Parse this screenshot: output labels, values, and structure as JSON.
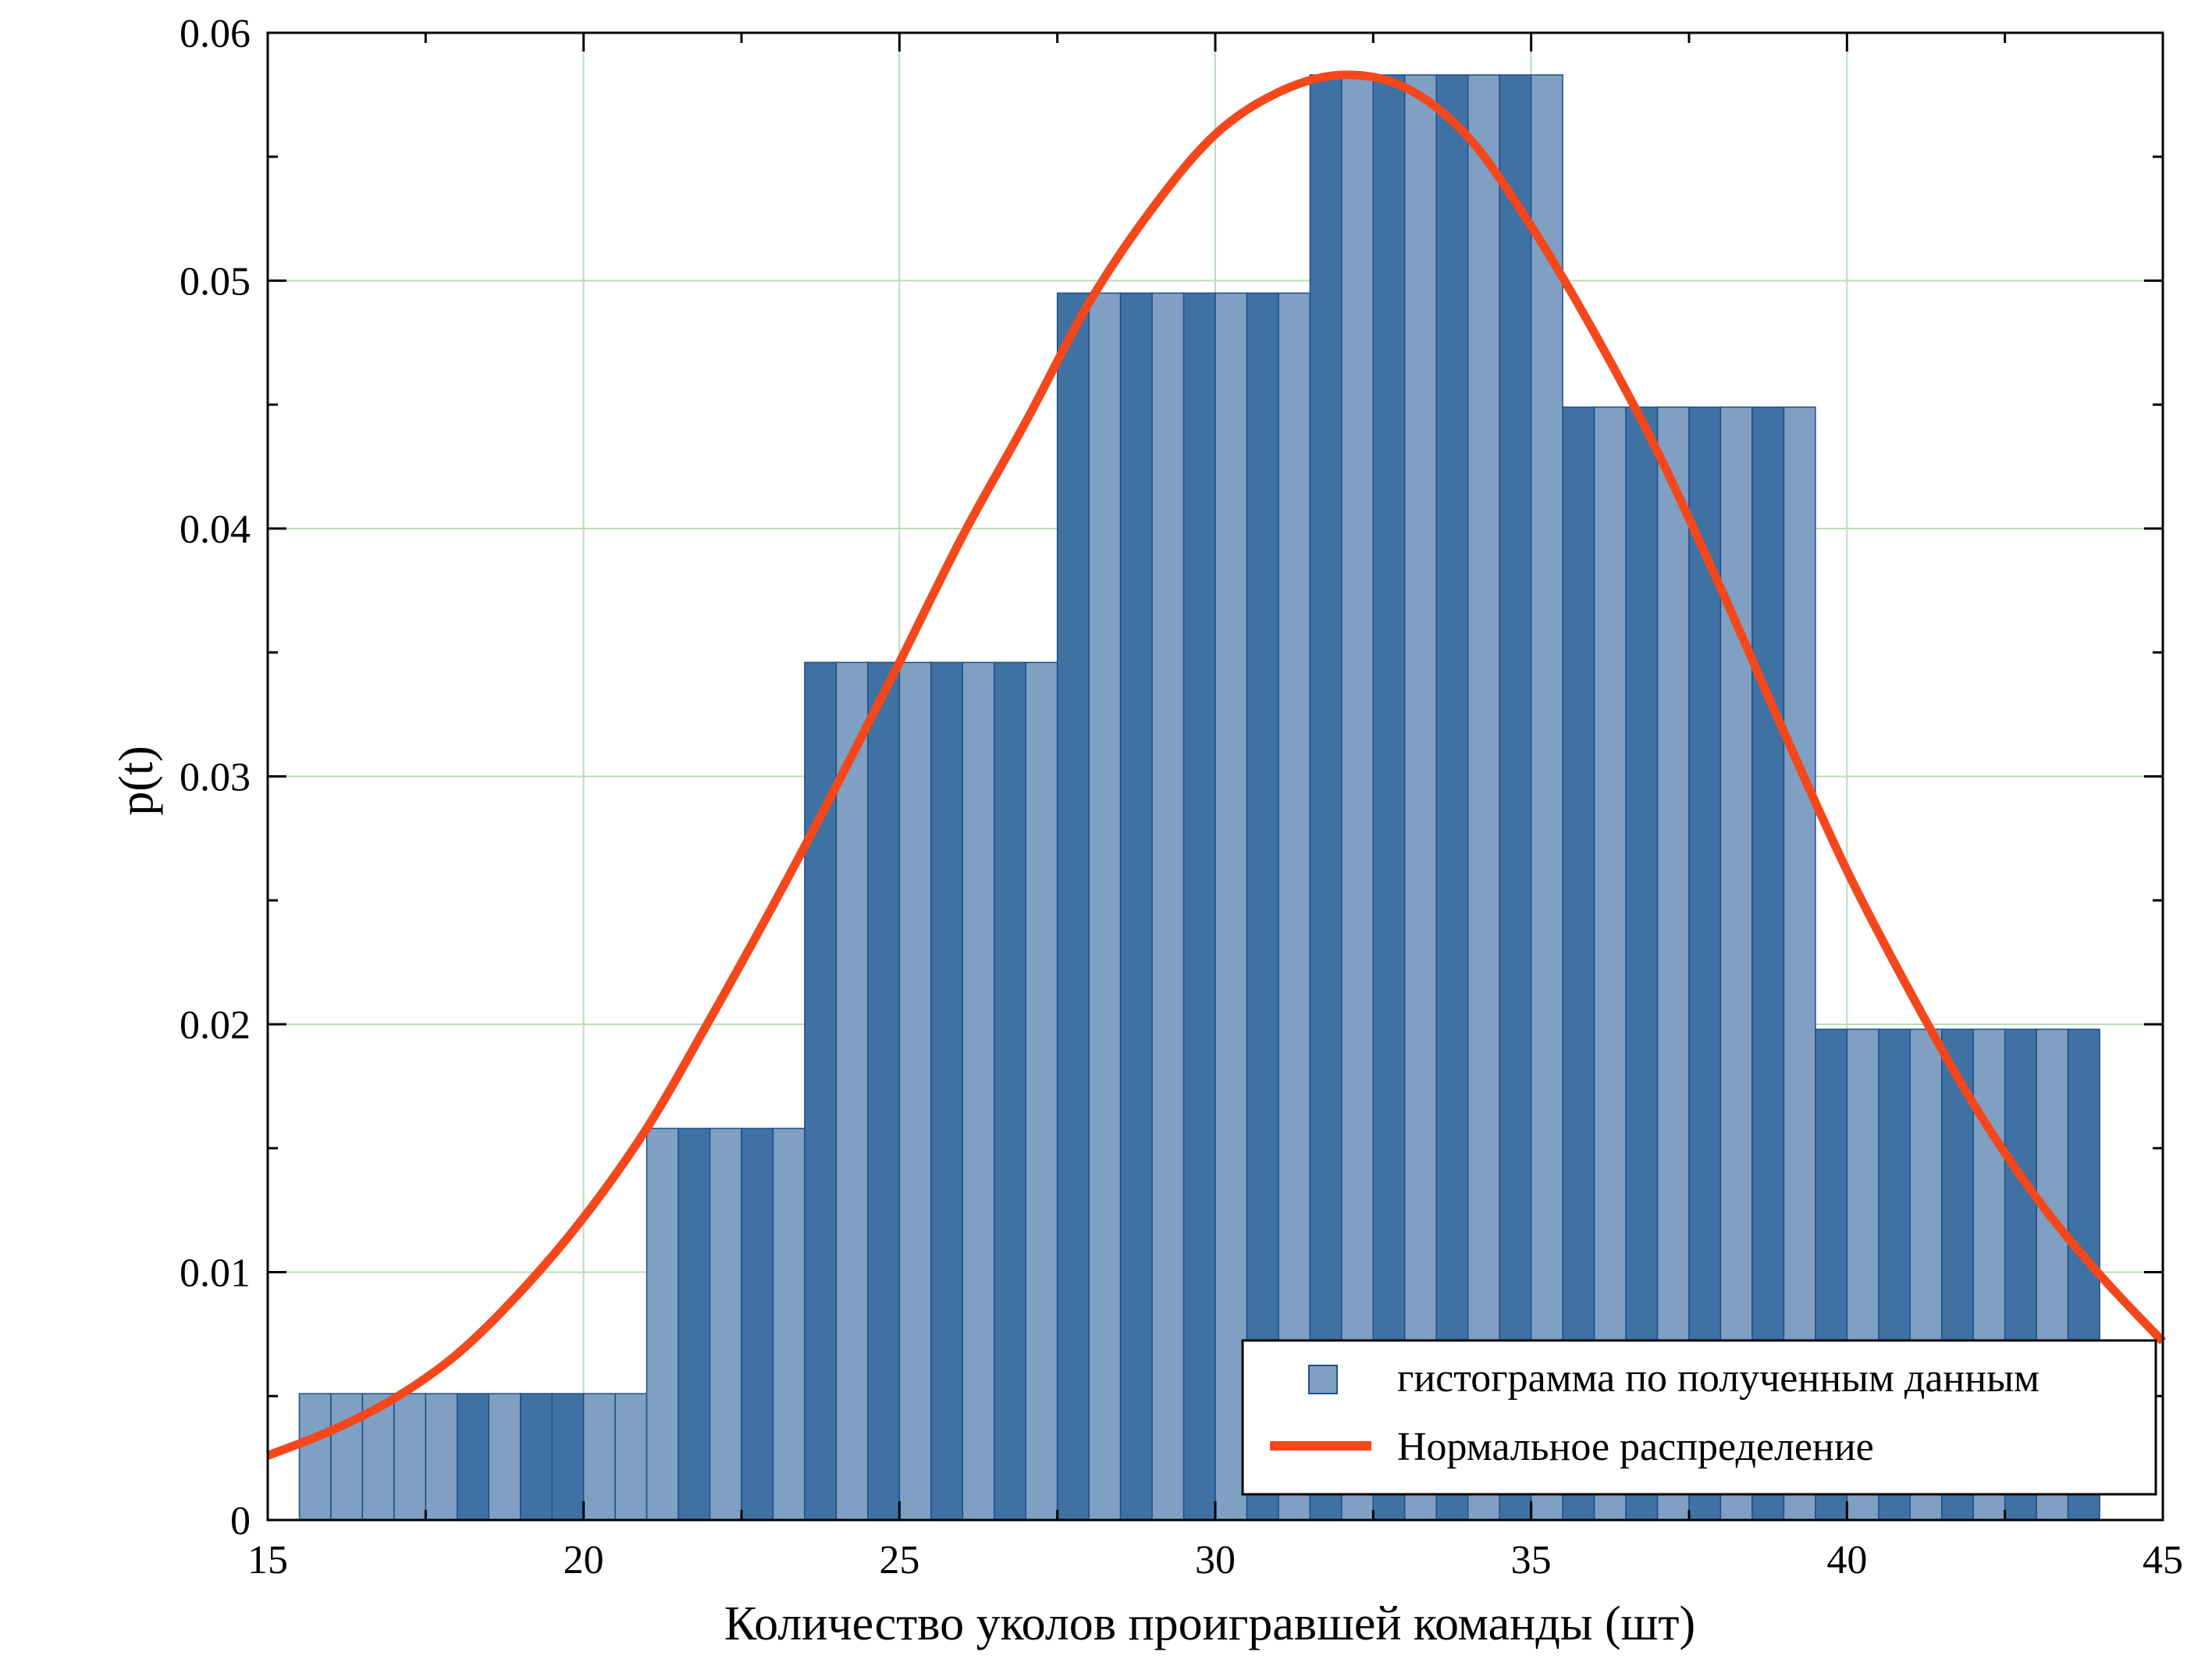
{
  "chart_data": {
    "type": "bar",
    "title": "",
    "xlabel": "Количество уколов проигравшей команды (шт)",
    "ylabel": "p(t)",
    "xlim": [
      15,
      45
    ],
    "ylim": [
      0,
      0.06
    ],
    "xticks": [
      "15",
      "20",
      "25",
      "30",
      "35",
      "40",
      "45"
    ],
    "yticks": [
      "0",
      "0.01",
      "0.02",
      "0.03",
      "0.04",
      "0.05",
      "0.06"
    ],
    "grid": true,
    "legend_position": "bottom-right",
    "colors": {
      "bar_dark": "#3f71a3",
      "bar_light": "#7f9fc3",
      "bar_edge": "#1f4f8a",
      "curve": "#f5471c",
      "grid": "#b9dcb9"
    },
    "series": [
      {
        "name": "гистограмма по полученным данным",
        "kind": "histogram",
        "bar_width": 0.5,
        "x": [
          15.75,
          16.25,
          16.75,
          17.25,
          17.75,
          18.25,
          18.75,
          19.25,
          19.75,
          20.25,
          20.75,
          21.25,
          21.75,
          22.25,
          22.75,
          23.25,
          23.75,
          24.25,
          24.75,
          25.25,
          25.75,
          26.25,
          26.75,
          27.25,
          27.75,
          28.25,
          28.75,
          29.25,
          29.75,
          30.25,
          30.75,
          31.25,
          31.75,
          32.25,
          32.75,
          33.25,
          33.75,
          34.25,
          34.75,
          35.25,
          35.75,
          36.25,
          36.75,
          37.25,
          37.75,
          38.25,
          38.75,
          39.25,
          39.75,
          40.25,
          40.75,
          41.25,
          41.75,
          42.25,
          42.75,
          43.25,
          43.75
        ],
        "values": [
          0.0051,
          0.0051,
          0.0051,
          0.0051,
          0.0051,
          0.0051,
          0.0051,
          0.0051,
          0.0051,
          0.0051,
          0.0051,
          0.0158,
          0.0158,
          0.0158,
          0.0158,
          0.0158,
          0.0346,
          0.0346,
          0.0346,
          0.0346,
          0.0346,
          0.0346,
          0.0346,
          0.0346,
          0.0495,
          0.0495,
          0.0495,
          0.0495,
          0.0495,
          0.0495,
          0.0495,
          0.0495,
          0.0583,
          0.0583,
          0.0583,
          0.0583,
          0.0583,
          0.0583,
          0.0583,
          0.0583,
          0.0449,
          0.0449,
          0.0449,
          0.0449,
          0.0449,
          0.0449,
          0.0449,
          0.0449,
          0.0198,
          0.0198,
          0.0198,
          0.0198,
          0.0198,
          0.0198,
          0.0198,
          0.0198,
          0.0198
        ],
        "shade": [
          "l",
          "l",
          "l",
          "l",
          "l",
          "d",
          "l",
          "d",
          "d",
          "l",
          "l",
          "l",
          "d",
          "l",
          "d",
          "l",
          "d",
          "l",
          "d",
          "l",
          "d",
          "l",
          "d",
          "l",
          "d",
          "l",
          "d",
          "l",
          "d",
          "l",
          "d",
          "l",
          "d",
          "l",
          "d",
          "l",
          "d",
          "l",
          "d",
          "l",
          "d",
          "l",
          "d",
          "l",
          "d",
          "l",
          "d",
          "l",
          "d",
          "l",
          "d",
          "l",
          "d",
          "l",
          "d",
          "l",
          "d"
        ]
      },
      {
        "name": "Нормальное распределение",
        "kind": "line",
        "x": [
          15,
          16,
          17,
          18,
          19,
          20,
          21,
          22,
          23,
          24,
          25,
          26,
          27,
          28,
          29,
          30,
          31,
          32,
          33,
          34,
          35,
          36,
          37,
          38,
          39,
          40,
          41,
          42,
          43,
          44,
          45
        ],
        "values": [
          0.0026,
          0.0036,
          0.0049,
          0.0067,
          0.0092,
          0.0122,
          0.0158,
          0.0202,
          0.0248,
          0.0296,
          0.0346,
          0.0397,
          0.0443,
          0.0491,
          0.0529,
          0.0559,
          0.0576,
          0.0583,
          0.0578,
          0.0558,
          0.0522,
          0.0479,
          0.0431,
          0.0376,
          0.0318,
          0.0262,
          0.0213,
          0.0168,
          0.013,
          0.0099,
          0.0072
        ]
      }
    ]
  }
}
